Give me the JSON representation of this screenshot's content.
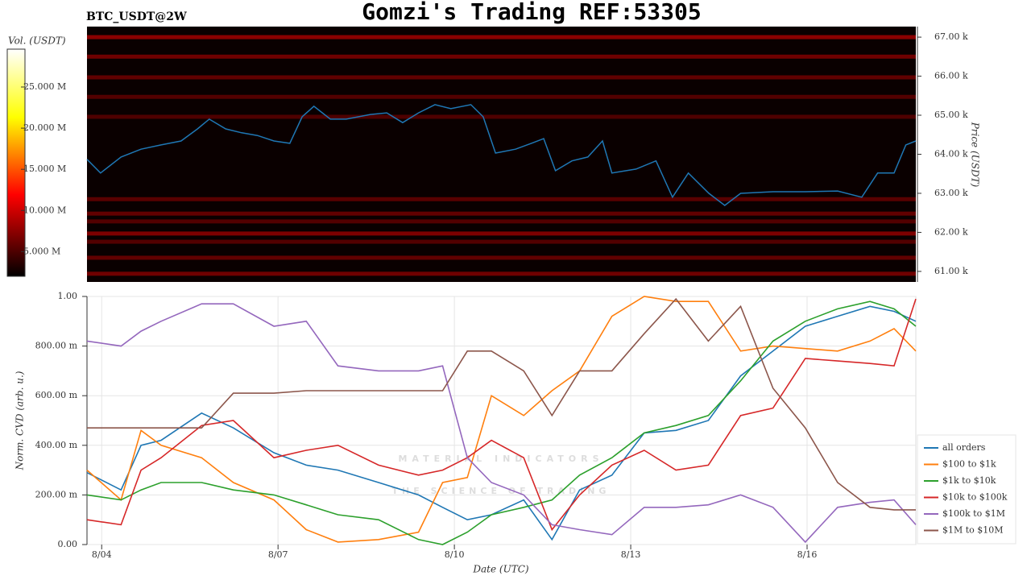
{
  "title": "Gomzi's Trading REF:53305",
  "symbol": "BTC_USDT@2W",
  "watermark": {
    "title": "MATERIAL INDICATORS",
    "subtitle": "THE SCIENCE OF TRADING"
  },
  "chart_data": [
    {
      "type": "heatmap",
      "y_label": "Price (USDT)",
      "xlim": [
        3.75,
        17.85
      ],
      "ylim": [
        60730,
        67270
      ],
      "yticks": [
        {
          "value": 61000,
          "label": "61.00 k"
        },
        {
          "value": 62000,
          "label": "62.00 k"
        },
        {
          "value": 63000,
          "label": "63.00 k"
        },
        {
          "value": 64000,
          "label": "64.00 k"
        },
        {
          "value": 65000,
          "label": "65.00 k"
        },
        {
          "value": 66000,
          "label": "66.00 k"
        },
        {
          "value": 67000,
          "label": "67.00 k"
        }
      ],
      "colorbar": {
        "label": "Vol. (USDT)",
        "zlim": [
          2000000,
          29600000
        ],
        "ticks": [
          {
            "value": 5000000,
            "label": "5.000 M"
          },
          {
            "value": 10000000,
            "label": "10.000 M"
          },
          {
            "value": 15000000,
            "label": "15.000 M"
          },
          {
            "value": 20000000,
            "label": "20.000 M"
          },
          {
            "value": 25000000,
            "label": "25.000 M"
          }
        ]
      },
      "levels": {
        "prices": [
          67000,
          66500,
          65970,
          65470,
          64960,
          62850,
          62480,
          62280,
          61970,
          61760,
          61350,
          60940
        ],
        "volumes": [
          7000000,
          6000000,
          5500000,
          5000000,
          4800000,
          5200000,
          5500000,
          5000000,
          6500000,
          5000000,
          5500000,
          6000000
        ]
      },
      "x": [
        3.75,
        3.98,
        4.33,
        4.67,
        5.01,
        5.35,
        5.63,
        5.83,
        6.11,
        6.38,
        6.65,
        6.93,
        7.2,
        7.41,
        7.61,
        7.89,
        8.16,
        8.57,
        8.85,
        9.12,
        9.39,
        9.67,
        9.94,
        10.28,
        10.49,
        10.7,
        11.04,
        11.31,
        11.52,
        11.72,
        12.0,
        12.27,
        12.52,
        12.68,
        13.09,
        13.43,
        13.71,
        13.98,
        14.33,
        14.6,
        14.87,
        15.42,
        15.97,
        16.52,
        16.93,
        17.2,
        17.48,
        17.68,
        17.85
      ],
      "series": [
        {
          "color": "#1f77b4",
          "values": [
            63870,
            63520,
            63930,
            64130,
            64240,
            64340,
            64650,
            64900,
            64650,
            64550,
            64480,
            64340,
            64280,
            64960,
            65230,
            64900,
            64900,
            65020,
            65060,
            64810,
            65060,
            65270,
            65170,
            65270,
            64960,
            64030,
            64130,
            64280,
            64400,
            63580,
            63830,
            63930,
            64340,
            63520,
            63620,
            63830,
            62900,
            63520,
            63000,
            62690,
            63000,
            63040,
            63040,
            63060,
            62900,
            63520,
            63520,
            64240,
            64340
          ]
        }
      ]
    },
    {
      "type": "line",
      "y_label": "Norm. CVD (arb. u.)",
      "x_label": "Date (UTC)",
      "xlim": [
        3.75,
        17.85
      ],
      "xticks": [
        {
          "value": 4,
          "label": "8/04"
        },
        {
          "value": 7,
          "label": "8/07"
        },
        {
          "value": 10,
          "label": "8/10"
        },
        {
          "value": 13,
          "label": "8/13"
        },
        {
          "value": 16,
          "label": "8/16"
        }
      ],
      "ylim": [
        0,
        1
      ],
      "yticks": [
        {
          "value": 0,
          "label": "0.00"
        },
        {
          "value": 0.2,
          "label": "200.00 m"
        },
        {
          "value": 0.4,
          "label": "400.00 m"
        },
        {
          "value": 0.6,
          "label": "600.00 m"
        },
        {
          "value": 0.8,
          "label": "800.00 m"
        },
        {
          "value": 1,
          "label": "1.00"
        }
      ],
      "grid": true,
      "legend": "right",
      "x": [
        3.75,
        4.33,
        4.67,
        5.01,
        5.7,
        6.24,
        6.93,
        7.48,
        8.02,
        8.71,
        9.39,
        9.8,
        10.22,
        10.63,
        11.18,
        11.66,
        12.13,
        12.68,
        13.23,
        13.77,
        14.32,
        14.87,
        15.42,
        15.97,
        16.52,
        17.07,
        17.48,
        17.85
      ],
      "series": [
        {
          "name": "all orders",
          "color": "#1f77b4",
          "values": [
            0.29,
            0.22,
            0.4,
            0.42,
            0.53,
            0.47,
            0.37,
            0.32,
            0.3,
            0.25,
            0.2,
            0.15,
            0.1,
            0.12,
            0.18,
            0.02,
            0.22,
            0.28,
            0.45,
            0.46,
            0.5,
            0.68,
            0.78,
            0.88,
            0.92,
            0.96,
            0.94,
            0.9
          ]
        },
        {
          "name": "$100 to $1k",
          "color": "#ff7f0e",
          "values": [
            0.3,
            0.18,
            0.46,
            0.4,
            0.35,
            0.25,
            0.18,
            0.06,
            0.01,
            0.02,
            0.05,
            0.25,
            0.27,
            0.6,
            0.52,
            0.62,
            0.7,
            0.92,
            1.0,
            0.98,
            0.98,
            0.78,
            0.8,
            0.79,
            0.78,
            0.82,
            0.87,
            0.78
          ]
        },
        {
          "name": "$1k to $10k",
          "color": "#2ca02c",
          "values": [
            0.2,
            0.18,
            0.22,
            0.25,
            0.25,
            0.22,
            0.2,
            0.16,
            0.12,
            0.1,
            0.02,
            0.0,
            0.05,
            0.12,
            0.15,
            0.18,
            0.28,
            0.35,
            0.45,
            0.48,
            0.52,
            0.66,
            0.82,
            0.9,
            0.95,
            0.98,
            0.95,
            0.88
          ]
        },
        {
          "name": "$10k to $100k",
          "color": "#d62728",
          "values": [
            0.1,
            0.08,
            0.3,
            0.35,
            0.48,
            0.5,
            0.35,
            0.38,
            0.4,
            0.32,
            0.28,
            0.3,
            0.35,
            0.42,
            0.35,
            0.06,
            0.2,
            0.32,
            0.38,
            0.3,
            0.32,
            0.52,
            0.55,
            0.75,
            0.74,
            0.73,
            0.72,
            0.99
          ]
        },
        {
          "name": "$100k to $1M",
          "color": "#9467bd",
          "values": [
            0.82,
            0.8,
            0.86,
            0.9,
            0.97,
            0.97,
            0.88,
            0.9,
            0.72,
            0.7,
            0.7,
            0.72,
            0.35,
            0.25,
            0.2,
            0.08,
            0.06,
            0.04,
            0.15,
            0.15,
            0.16,
            0.2,
            0.15,
            0.01,
            0.15,
            0.17,
            0.18,
            0.08
          ]
        },
        {
          "name": "$1M to $10M",
          "color": "#8c564b",
          "values": [
            0.47,
            0.47,
            0.47,
            0.47,
            0.47,
            0.61,
            0.61,
            0.62,
            0.62,
            0.62,
            0.62,
            0.62,
            0.78,
            0.78,
            0.7,
            0.52,
            0.7,
            0.7,
            0.85,
            0.99,
            0.82,
            0.96,
            0.63,
            0.47,
            0.25,
            0.15,
            0.14,
            0.14
          ]
        }
      ]
    }
  ]
}
